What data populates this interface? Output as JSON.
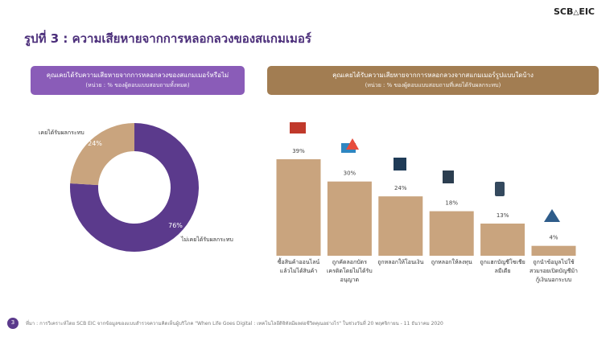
{
  "header": {
    "title": "รูปที่ 3 : ความเสียหายจากการหลอกลวงของสแกมเมอร์",
    "logo_left": "SCB",
    "logo_right": "EIC"
  },
  "chart_data": [
    {
      "type": "pie",
      "donut": true,
      "title": "คุณเคยได้รับความเสียหายจากการหลอกลวงของสแกมเมอร์หรือไม่",
      "subtitle": "(หน่วย : % ของผู้ตอบแบบสอบถามทั้งหมด)",
      "header_color": "#8a5cb8",
      "categories": [
        "ไม่เคยได้รับผลกระทบ",
        "เคยได้รับผลกระทบ"
      ],
      "values": [
        76,
        24
      ],
      "value_labels": [
        "76%",
        "24%"
      ],
      "colors": [
        "#5b3a8c",
        "#c9a47e"
      ]
    },
    {
      "type": "bar",
      "title": "คุณเคยได้รับความเสียหายจากการหลอกลวงจากสแกมเมอร์รูปแบบใดบ้าง",
      "subtitle": "(หน่วย : % ของผู้ตอบแบบสอบถามที่เคยได้รับผลกระทบ)",
      "header_color": "#a27d52",
      "categories": [
        "ซื้อสินค้าออนไลน์แล้วไม่ได้สินค้า",
        "ถูกคัดลอกบัตรเครดิตโดยไม่ได้รับอนุญาต",
        "ถูกหลอกให้โอนเงิน",
        "ถูกหลอกให้ลงทุน",
        "ถูกแฮกบัญชีโซเชียลมีเดีย",
        "ถูกนำข้อมูลไปใช้ สวมรอยเปิดบัญชีม้า กู้เงินนอกระบบ"
      ],
      "values": [
        39,
        30,
        24,
        18,
        13,
        4
      ],
      "value_labels": [
        "39%",
        "30%",
        "24%",
        "18%",
        "13%",
        "4%"
      ],
      "color": "#c9a47e"
    }
  ],
  "footer": {
    "page": "3",
    "source": "ที่มา : การวิเคราะห์โดย SCB EIC จากข้อมูลของแบบสำรวจความคิดเห็นผู้บริโภค \"When Life Goes Digital : เทคโนโลยีดิจิทัลมีผลต่อชีวิตคุณอย่างไร\" ในช่วงวันที่ 20 พฤศจิกายน - 11 ธันวาคม 2020"
  }
}
